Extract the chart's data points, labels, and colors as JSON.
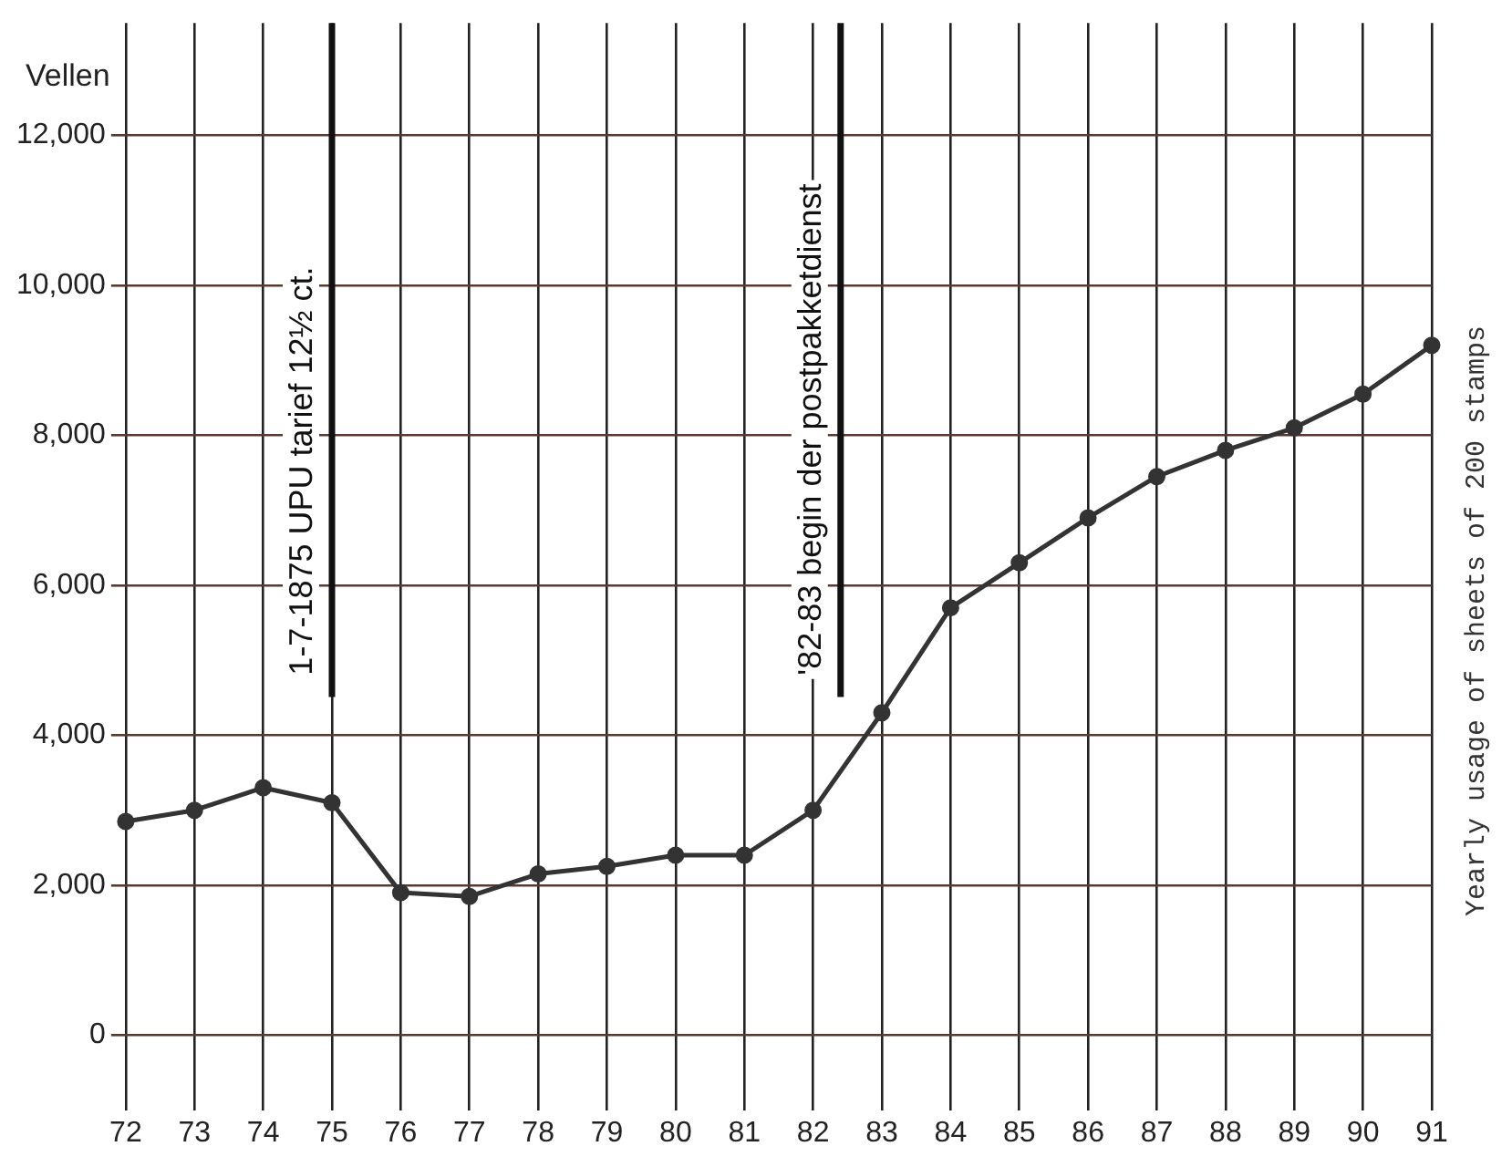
{
  "chart_data": {
    "type": "line",
    "ylabel": "Vellen",
    "x": [
      72,
      73,
      74,
      75,
      76,
      77,
      78,
      79,
      80,
      81,
      82,
      83,
      84,
      85,
      86,
      87,
      88,
      89,
      90,
      91
    ],
    "series": [
      {
        "color": "#333333",
        "values": [
          2850,
          3000,
          3300,
          3100,
          1900,
          1850,
          2150,
          2250,
          2400,
          2400,
          3000,
          4300,
          5700,
          6300,
          6900,
          7450,
          7800,
          8100,
          8550,
          9200
        ]
      }
    ],
    "xlim": [
      72,
      91
    ],
    "xticks": [
      72,
      73,
      74,
      75,
      76,
      77,
      78,
      79,
      80,
      81,
      82,
      83,
      84,
      85,
      86,
      87,
      88,
      89,
      90,
      91
    ],
    "ylim": [
      -1000,
      13500
    ],
    "yticks": [
      0,
      {
        "value": 2000,
        "label": "2,000"
      },
      {
        "value": 4000,
        "label": "4,000"
      },
      {
        "value": 6000,
        "label": "6,000"
      },
      {
        "value": 8000,
        "label": "8,000"
      },
      {
        "value": 10000,
        "label": "10,000"
      },
      {
        "value": 12000,
        "label": "12,000"
      }
    ],
    "ref_lines": [
      {
        "axis": "x",
        "value": 75,
        "label": "1-7-1875 UPU tarief 12½ ct."
      },
      {
        "axis": "x",
        "value": 82.4,
        "label": "'82-83 begin der postpakketdienst"
      }
    ],
    "annotations": [
      "Yearly usage of sheets of 200 stamps"
    ],
    "grid": true,
    "legend": false,
    "marker": "circle",
    "line_style": "solid"
  }
}
